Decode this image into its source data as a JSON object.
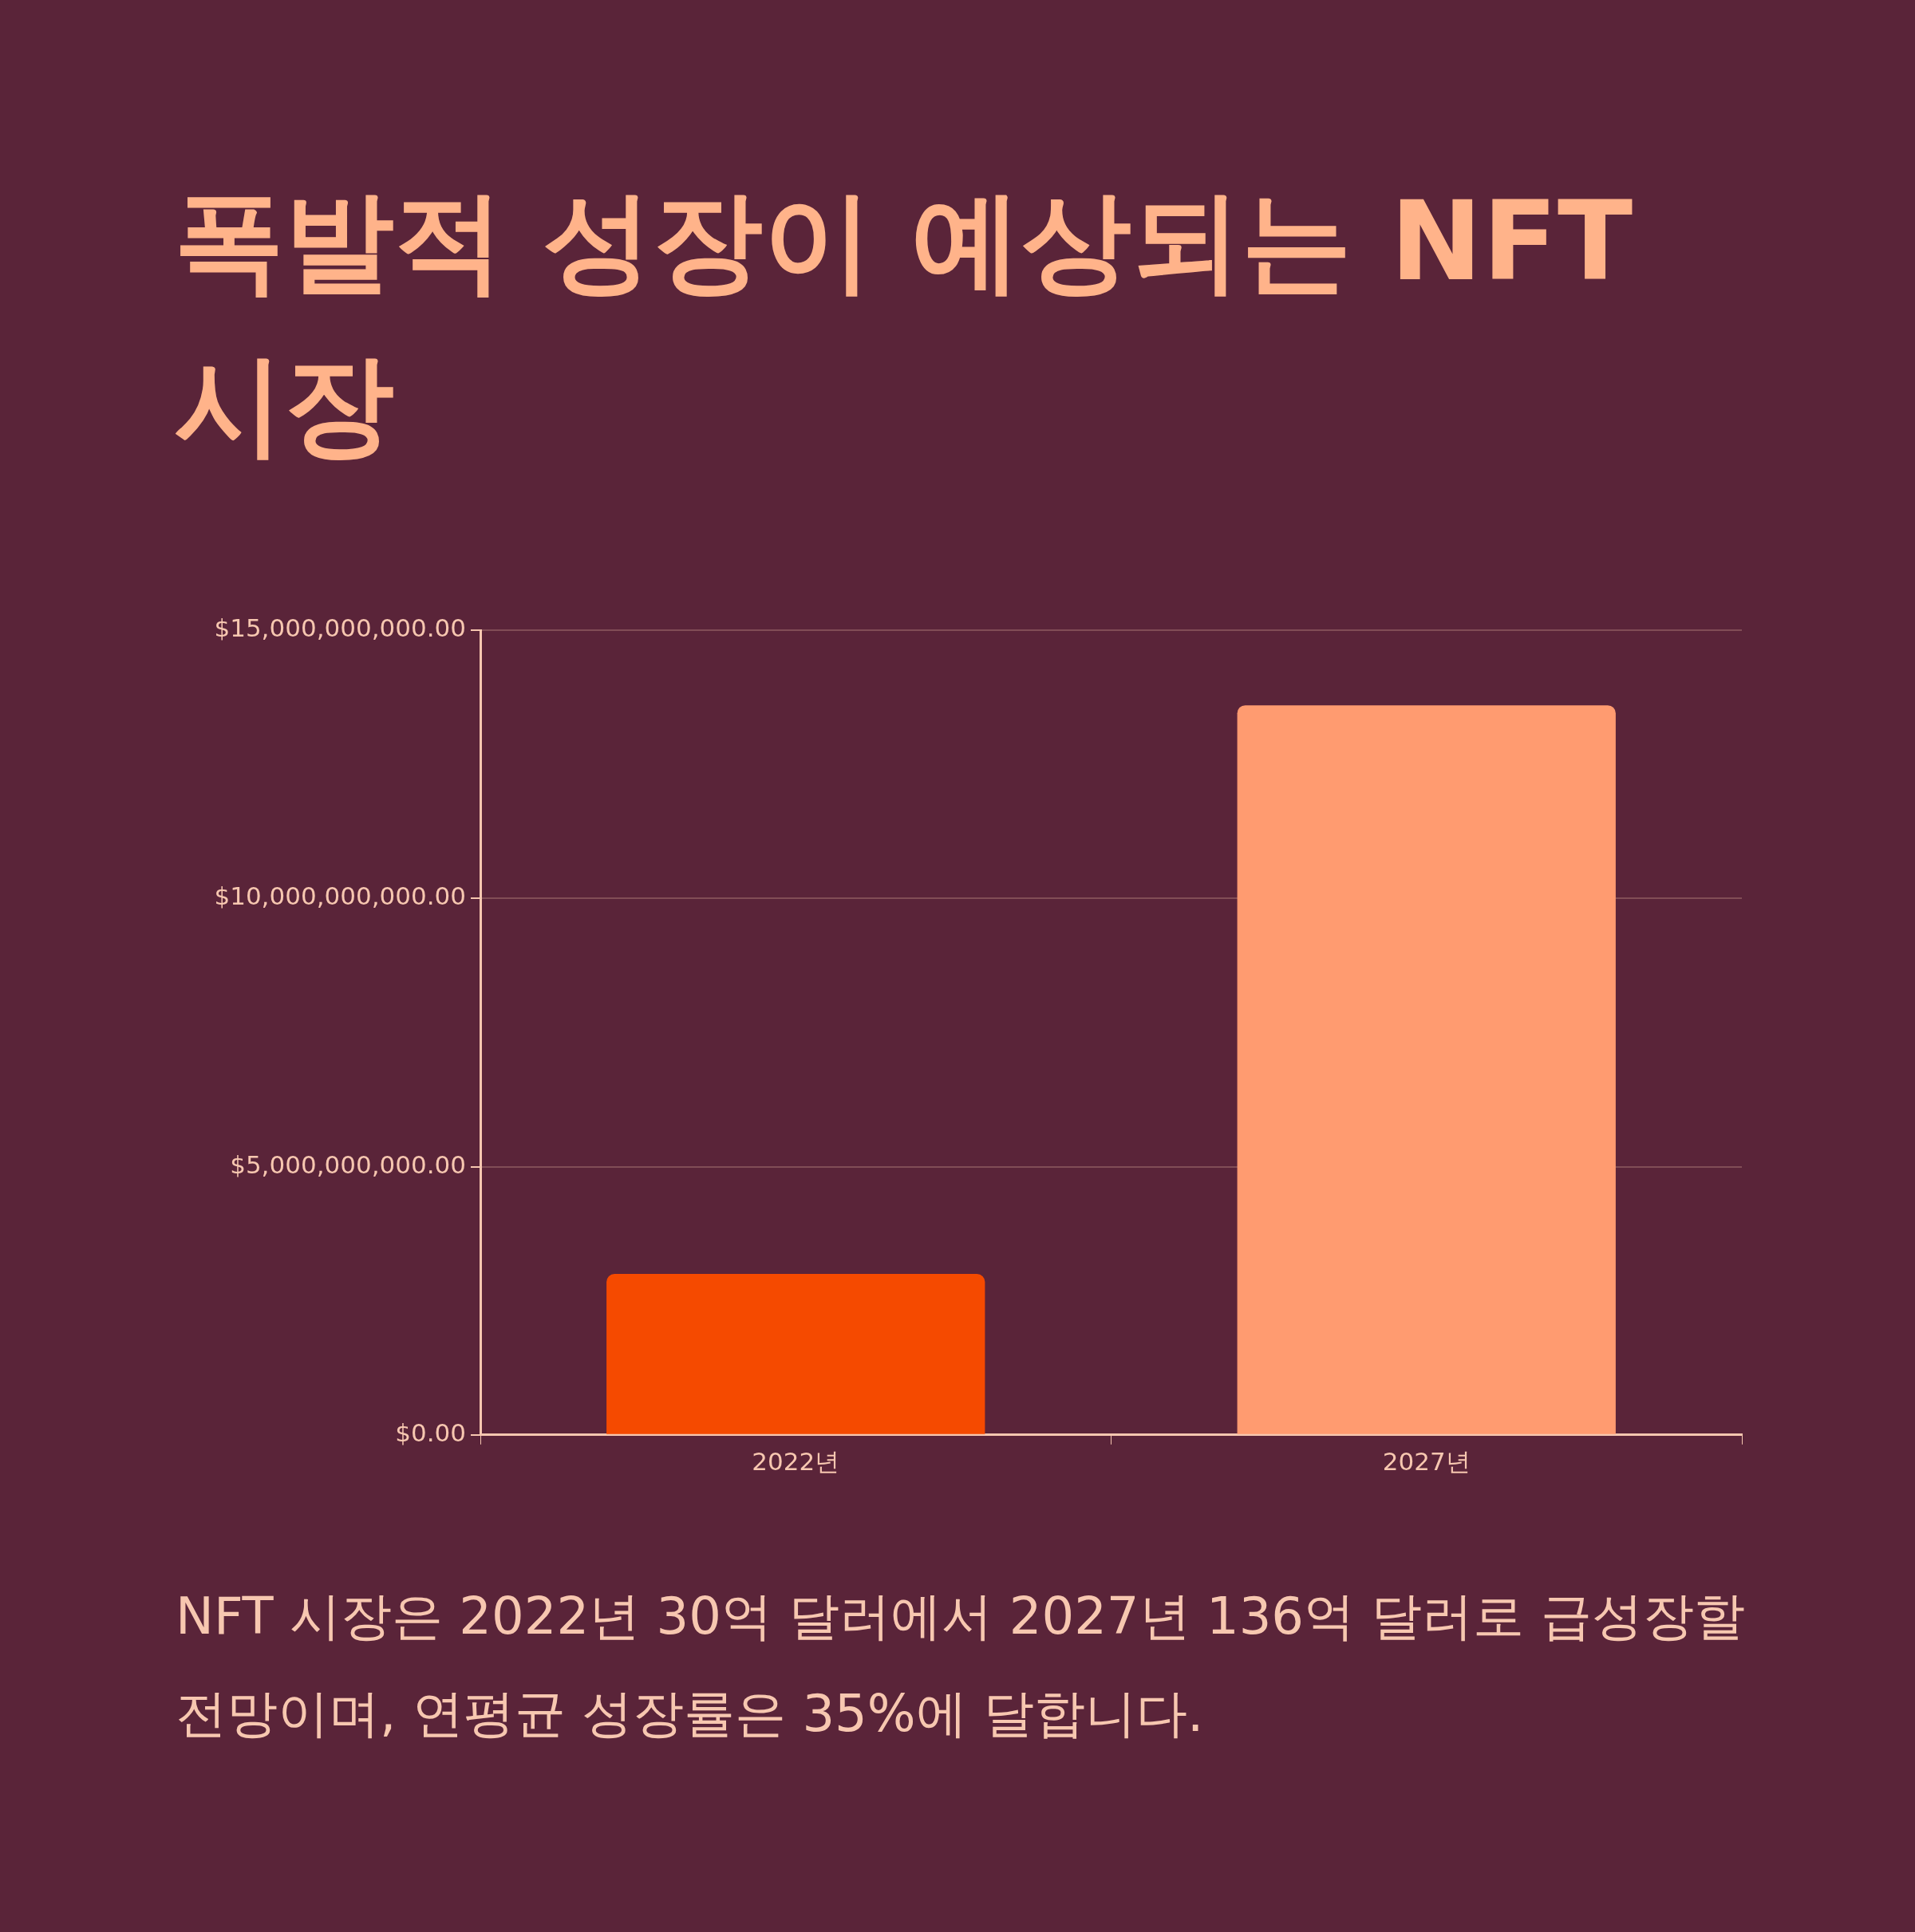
{
  "chart_data": {
    "type": "bar",
    "title": "폭발적 성장이 예상되는 NFT 시장",
    "categories": [
      "2022년",
      "2027년"
    ],
    "values": [
      3000000000,
      13600000000
    ],
    "colors": [
      "#f54a00",
      "#ff9b70"
    ],
    "ylim": [
      0,
      15000000000
    ],
    "yticks": [
      {
        "value": 0,
        "label": "$0.00"
      },
      {
        "value": 5000000000,
        "label": "$5,000,000,000.00"
      },
      {
        "value": 10000000000,
        "label": "$10,000,000,000.00"
      },
      {
        "value": 15000000000,
        "label": "$15,000,000,000.00"
      }
    ],
    "grid": "y",
    "annotations": [
      "NFT 시장은 2022년 30억 달러에서 2027년 136억 달러로 급성장할 전망이며, 연평균 성장률은 35%에 달합니다."
    ]
  }
}
